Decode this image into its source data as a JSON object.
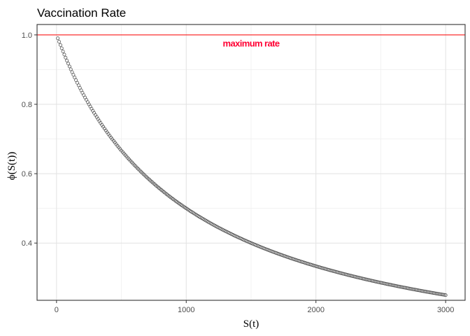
{
  "chart_data": {
    "type": "scatter",
    "title": "Vaccination Rate",
    "xlabel": "S(t)",
    "ylabel": "ϕ(S(t))",
    "xlim": [
      -150,
      3150
    ],
    "ylim": [
      0.235,
      1.03
    ],
    "x_ticks": [
      0,
      1000,
      2000,
      3000
    ],
    "x_tick_labels": [
      "0",
      "1000",
      "2000",
      "3000"
    ],
    "y_ticks": [
      0.4,
      0.6,
      0.8,
      1.0
    ],
    "y_tick_labels": [
      "0.4",
      "0.6",
      "0.8",
      "1.0"
    ],
    "grid": true,
    "series": [
      {
        "function": "phi(S) = 1 / (1 + S / 1000)",
        "x_start": 10,
        "x_end": 3000,
        "x_step": 10,
        "point_color": "#4d4d4d"
      }
    ],
    "hline": {
      "y": 1.0,
      "color": "#ff0000"
    },
    "annotation": {
      "text": "maximum rate",
      "x": 1500,
      "y": 0.975,
      "color": "#ff0033"
    }
  }
}
